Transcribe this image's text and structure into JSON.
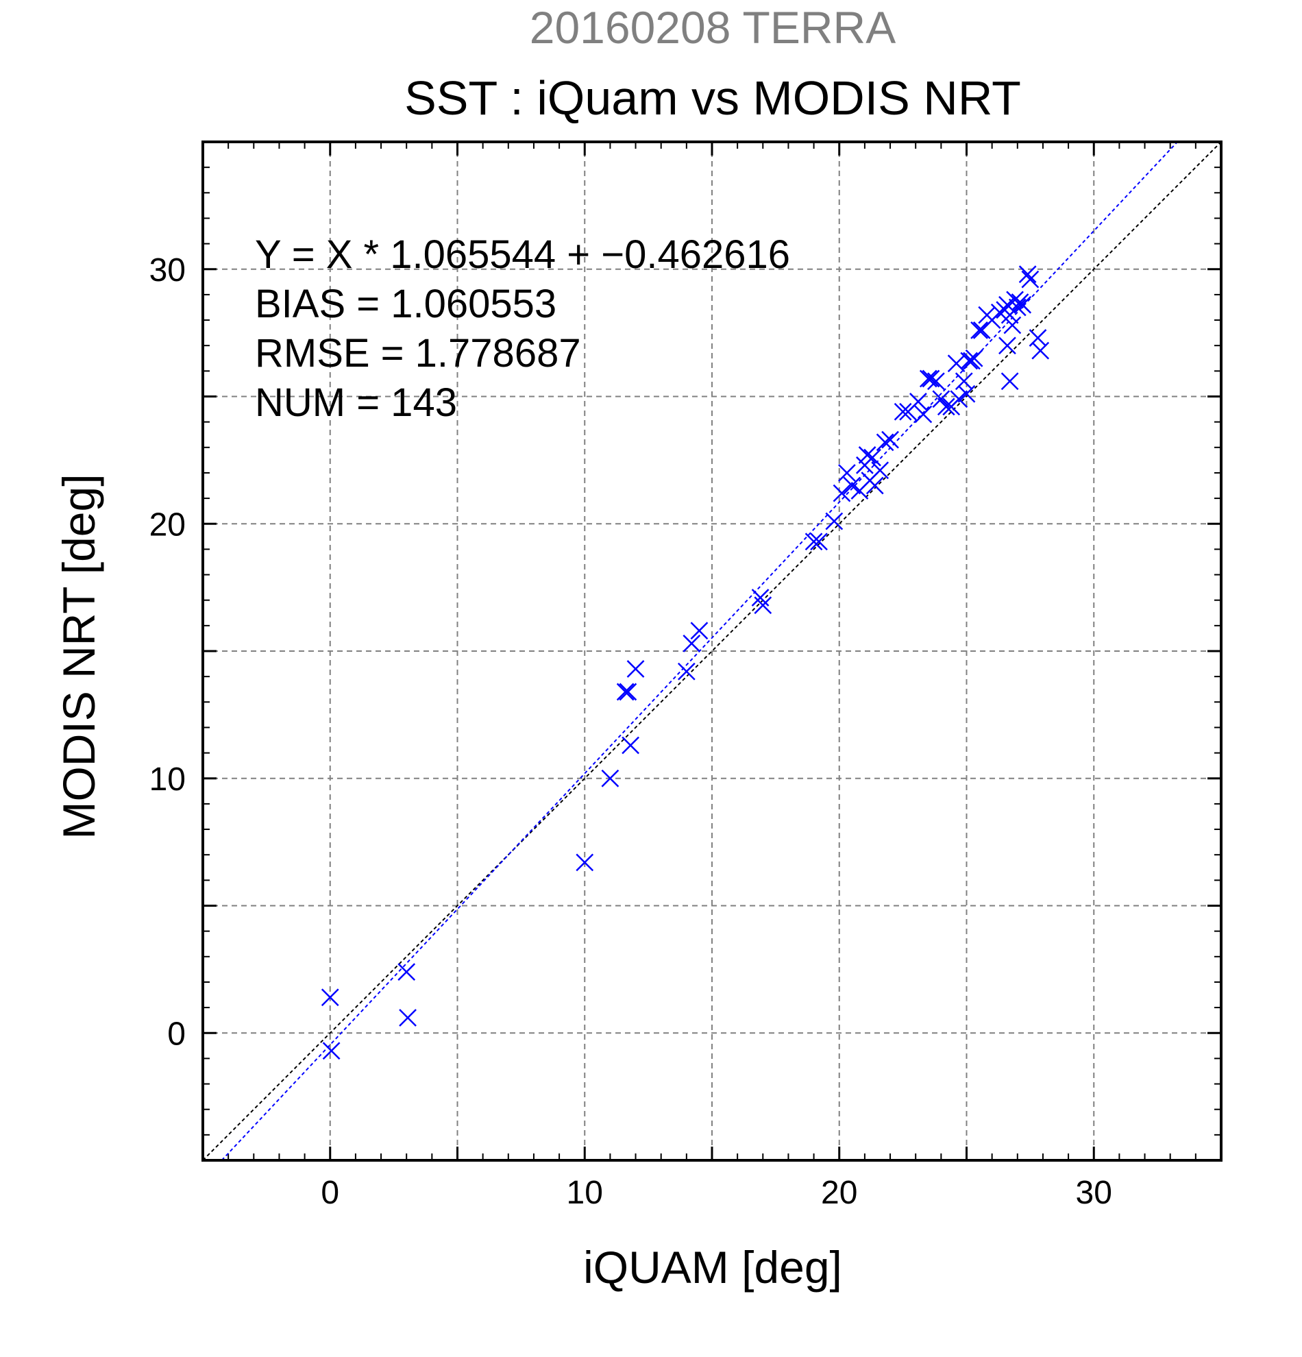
{
  "header": {
    "suptitle": "20160208 TERRA",
    "title": "SST : iQuam vs MODIS NRT"
  },
  "stats": {
    "fit": "Y = X * 1.065544 + −0.462616",
    "bias": "BIAS = 1.060553",
    "rmse": "RMSE = 1.778687",
    "num": "NUM = 143"
  },
  "colors": {
    "points": "#0000ff",
    "fit_line": "#0000ff",
    "identity_line": "#000000",
    "grid": "#808080",
    "suptitle": "#808080"
  },
  "chart_data": {
    "type": "scatter",
    "xlabel": "iQUAM [deg]",
    "ylabel": "MODIS NRT [deg]",
    "xlim": [
      -5,
      35
    ],
    "ylim": [
      -5,
      35
    ],
    "xticks": [
      0,
      10,
      20,
      30
    ],
    "yticks": [
      0,
      10,
      20,
      30
    ],
    "grid": true,
    "marker": "x",
    "series": [
      {
        "x": [
          0.0,
          0.05,
          3.0,
          3.05,
          10.0,
          11.0,
          11.6,
          11.7,
          11.8,
          12.0,
          14.0,
          14.2,
          14.5,
          16.9,
          17.0,
          19.0,
          19.2,
          19.8,
          20.1,
          20.3,
          20.5,
          20.8,
          21.0,
          21.1,
          21.2,
          21.3,
          21.4,
          21.6,
          21.8,
          22.0,
          22.5,
          22.7,
          23.1,
          23.3,
          23.5,
          23.6,
          23.8,
          24.0,
          24.2,
          24.4,
          24.6,
          24.7,
          24.9,
          25.0,
          25.1,
          25.2,
          25.3,
          25.5,
          25.6,
          25.8,
          26.0,
          26.3,
          26.5,
          26.6,
          26.7,
          26.8,
          26.9,
          27.0,
          27.1,
          27.2,
          27.4,
          27.5,
          27.8,
          27.9,
          26.7,
          26.6
        ],
        "y": [
          1.4,
          -0.7,
          2.4,
          0.6,
          6.7,
          10.0,
          13.4,
          13.4,
          11.3,
          14.3,
          14.2,
          15.3,
          15.8,
          17.1,
          16.8,
          19.3,
          19.3,
          20.1,
          21.2,
          22.0,
          21.5,
          21.3,
          22.3,
          22.7,
          21.7,
          22.6,
          21.5,
          22.1,
          23.2,
          23.3,
          24.4,
          24.4,
          24.8,
          24.3,
          25.7,
          25.7,
          25.6,
          24.9,
          24.6,
          24.6,
          26.3,
          24.9,
          25.6,
          25.1,
          26.4,
          26.4,
          26.5,
          27.6,
          27.6,
          28.2,
          28.0,
          28.3,
          28.4,
          28.6,
          28.2,
          27.8,
          28.8,
          28.5,
          28.7,
          28.6,
          29.8,
          29.6,
          27.3,
          26.8,
          25.6,
          27.0
        ]
      }
    ],
    "fit_line": {
      "slope": 1.065544,
      "intercept": -0.462616
    },
    "identity_line": {
      "slope": 1,
      "intercept": 0
    }
  }
}
